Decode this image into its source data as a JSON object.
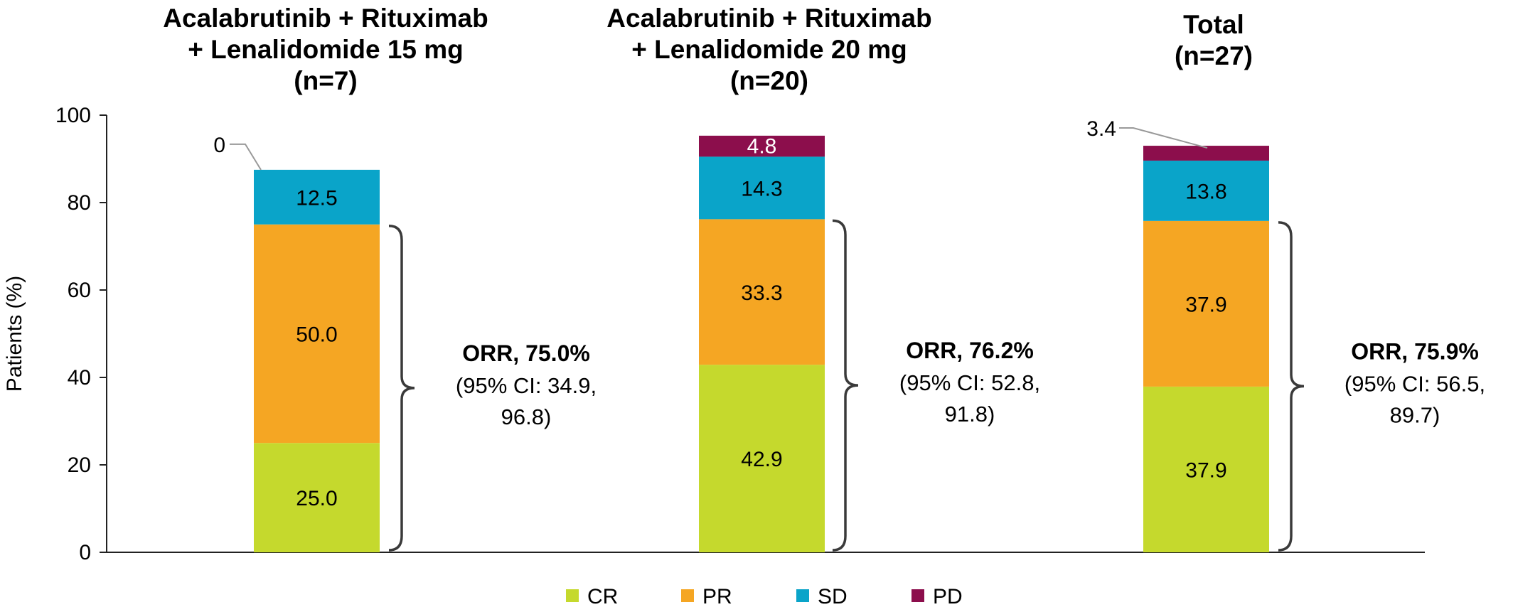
{
  "chart_data": {
    "type": "bar",
    "stacked": true,
    "ylabel": "Patients (%)",
    "xlabel": "",
    "ylim": [
      0,
      100
    ],
    "yticks": [
      0,
      20,
      40,
      60,
      80,
      100
    ],
    "grid": false,
    "legend_position": "bottom",
    "categories": [
      {
        "title_lines": [
          "Acalabrutinib + Rituximab",
          "+ Lenalidomide 15 mg",
          "(n=7)"
        ],
        "orr_title": "ORR, 75.0%",
        "orr_ci_lines": [
          "(95% CI: 34.9,",
          "96.8)"
        ]
      },
      {
        "title_lines": [
          "Acalabrutinib + Rituximab",
          "+ Lenalidomide 20 mg",
          "(n=20)"
        ],
        "orr_title": "ORR, 76.2%",
        "orr_ci_lines": [
          "(95% CI: 52.8,",
          "91.8)"
        ]
      },
      {
        "title_lines": [
          "Total",
          "(n=27)"
        ],
        "orr_title": "ORR, 75.9%",
        "orr_ci_lines": [
          "(95% CI: 56.5,",
          "89.7)"
        ]
      }
    ],
    "series": [
      {
        "name": "CR",
        "color": "#c5d92d",
        "values": [
          25.0,
          42.9,
          37.9
        ],
        "labels": [
          "25.0",
          "42.9",
          "37.9"
        ]
      },
      {
        "name": "PR",
        "color": "#f5a623",
        "values": [
          50.0,
          33.3,
          37.9
        ],
        "labels": [
          "50.0",
          "33.3",
          "37.9"
        ]
      },
      {
        "name": "SD",
        "color": "#0aa4c9",
        "values": [
          12.5,
          14.3,
          13.8
        ],
        "labels": [
          "12.5",
          "14.3",
          "13.8"
        ]
      },
      {
        "name": "PD",
        "color": "#8c0e4c",
        "values": [
          0,
          4.8,
          3.4
        ],
        "labels": [
          "0",
          "4.8",
          "3.4"
        ]
      }
    ]
  }
}
